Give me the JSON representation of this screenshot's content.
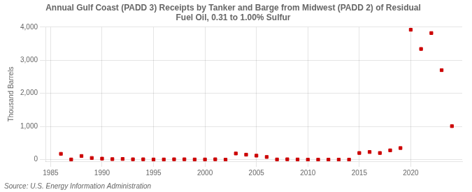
{
  "chart_data": {
    "type": "scatter",
    "title": "Annual Gulf Coast (PADD 3) Receipts by Tanker and Barge from Midwest (PADD 2) of Residual\nFuel Oil, 0.31 to 1.00% Sulfur",
    "ylabel": "Thousand Barrels",
    "annotation": "Source: U.S. Energy Information Administration",
    "color": "#cc0000",
    "marker": "square",
    "grid": true,
    "x": [
      1986,
      1987,
      1988,
      1989,
      1990,
      1991,
      1992,
      1993,
      1994,
      1995,
      1996,
      1997,
      1998,
      1999,
      2000,
      2001,
      2002,
      2003,
      2004,
      2005,
      2006,
      2007,
      2008,
      2009,
      2010,
      2011,
      2012,
      2013,
      2014,
      2015,
      2016,
      2017,
      2018,
      2019,
      2020,
      2021,
      2022,
      2023,
      2024
    ],
    "values": [
      175,
      5,
      110,
      50,
      30,
      15,
      20,
      10,
      10,
      5,
      5,
      10,
      10,
      5,
      5,
      10,
      0,
      185,
      150,
      120,
      80,
      5,
      10,
      5,
      0,
      0,
      0,
      0,
      0,
      200,
      230,
      200,
      280,
      350,
      3920,
      3340,
      3820,
      2700,
      1010
    ],
    "xlim": [
      1984.5,
      2025
    ],
    "xticks": [
      1985,
      1990,
      1995,
      2000,
      2005,
      2010,
      2015,
      2020
    ],
    "ylim": [
      -50,
      4000
    ],
    "yticks": [
      0,
      {
        "value": 1000,
        "label": "1,000"
      },
      {
        "value": 2000,
        "label": "2,000"
      },
      {
        "value": 3000,
        "label": "3,000"
      },
      {
        "value": 4000,
        "label": "4,000"
      }
    ]
  }
}
